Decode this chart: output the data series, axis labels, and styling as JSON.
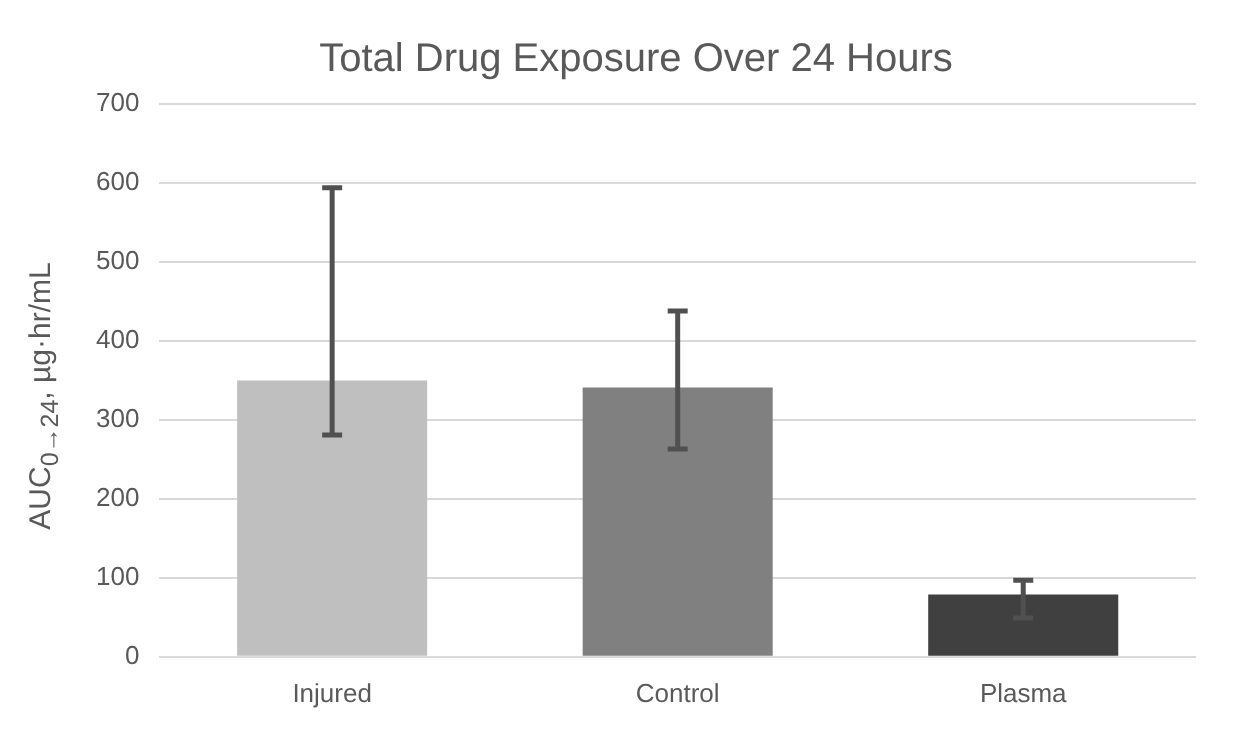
{
  "chart_data": {
    "type": "bar",
    "title": "Total Drug Exposure Over 24 Hours",
    "ylabel": "AUC$_{0→24}$, µg·hr/mL",
    "categories": [
      "Injured",
      "Control",
      "Plasma"
    ],
    "values": [
      350,
      341,
      79
    ],
    "colors": [
      "#bfbfbf",
      "#808080",
      "#404040"
    ],
    "errors": [
      [
        281,
        594
      ],
      [
        263,
        438
      ],
      [
        49,
        97
      ]
    ],
    "ylim": [
      0,
      700
    ],
    "yticks": [
      0,
      100,
      200,
      300,
      400,
      500,
      600,
      700
    ],
    "grid": "y",
    "legend": false
  }
}
